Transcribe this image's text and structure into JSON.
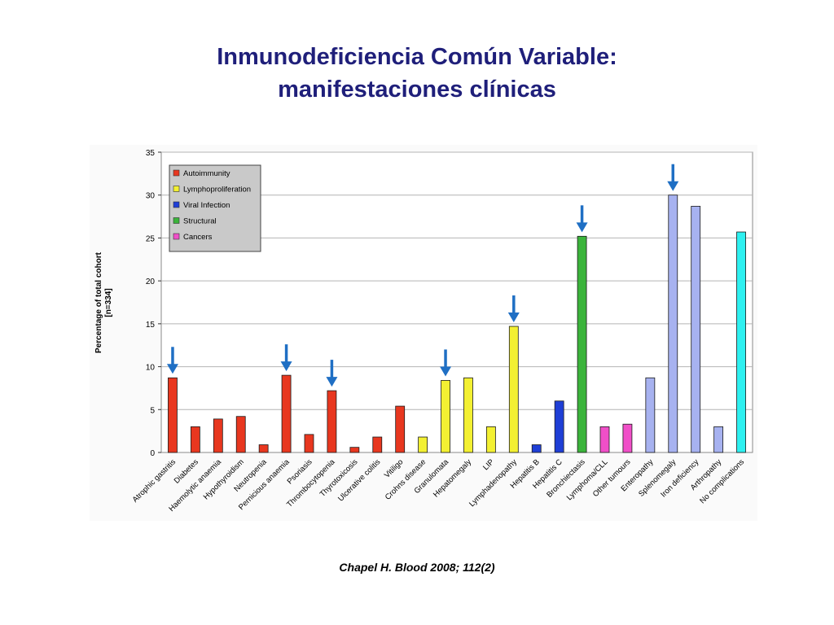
{
  "slide": {
    "title_line1": "Inmunodeficiencia Común Variable:",
    "title_line2": "manifestaciones clínicas",
    "citation": "Chapel H. Blood 2008; 112(2)"
  },
  "chart_data": {
    "type": "bar",
    "title": "",
    "xlabel": "",
    "ylabel": "Percentage of total cohort",
    "ylabel_sub": "[n=334]",
    "ylim": [
      0,
      35
    ],
    "yticks": [
      0,
      5,
      10,
      15,
      20,
      25,
      30,
      35
    ],
    "grid": true,
    "legend_position": "top-left",
    "groups": [
      {
        "name": "Autoimmunity",
        "color": "#e8371f"
      },
      {
        "name": "Lymphoproliferation",
        "color": "#f3f032"
      },
      {
        "name": "Viral Infection",
        "color": "#1f3fd6"
      },
      {
        "name": "Structural",
        "color": "#3bb43b"
      },
      {
        "name": "Cancers",
        "color": "#f04fc8"
      }
    ],
    "categories": [
      "Atrophic gastritis",
      "Diabetes",
      "Haemolytic anaemia",
      "Hypothyroidism",
      "Neutropenia",
      "Pernicious anaemia",
      "Psoriasis",
      "Thrombocytopenia",
      "Thyrotoxicosis",
      "Ulcerative colitis",
      "Vitiligo",
      "Crohns disease",
      "Granulomata",
      "Hepatomegaly",
      "LIP",
      "Lymphadenopathy",
      "Hepatitis B",
      "Hepatitis C",
      "Bronchiectasis",
      "Lymphoma/CLL",
      "Other tumours",
      "Enteropathy",
      "Splenomegaly",
      "Iron deficiency",
      "Arthropathy",
      "No complications"
    ],
    "values": [
      8.7,
      3.0,
      3.9,
      4.2,
      0.9,
      9.0,
      2.1,
      7.2,
      0.6,
      1.8,
      5.4,
      1.8,
      8.4,
      8.7,
      3.0,
      14.7,
      0.9,
      6.0,
      25.2,
      3.0,
      3.3,
      8.7,
      30.0,
      28.7,
      3.0,
      25.7
    ],
    "bar_colors": [
      "#e8371f",
      "#e8371f",
      "#e8371f",
      "#e8371f",
      "#e8371f",
      "#e8371f",
      "#e8371f",
      "#e8371f",
      "#e8371f",
      "#e8371f",
      "#e8371f",
      "#f3f032",
      "#f3f032",
      "#f3f032",
      "#f3f032",
      "#f3f032",
      "#1f3fd6",
      "#1f3fd6",
      "#3bb43b",
      "#f04fc8",
      "#f04fc8",
      "#a7b2f0",
      "#a7b2f0",
      "#a7b2f0",
      "#a7b2f0",
      "#2ef0f0"
    ],
    "highlighted": [
      "Atrophic gastritis",
      "Pernicious anaemia",
      "Thrombocytopenia",
      "Granulomata",
      "Lymphadenopathy",
      "Bronchiectasis",
      "Splenomegaly"
    ],
    "highlight_color": "#1f6fc4"
  }
}
